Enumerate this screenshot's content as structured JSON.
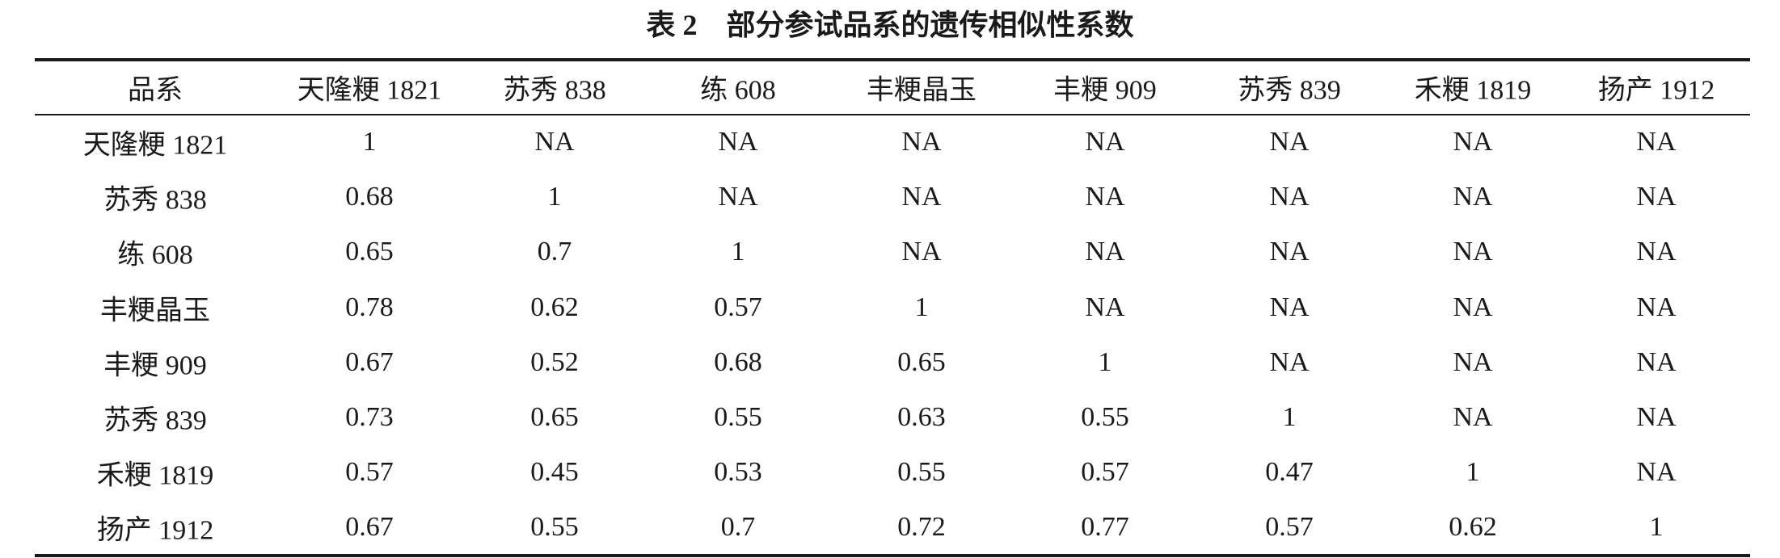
{
  "table": {
    "title": "表 2　部分参试品系的遗传相似性系数",
    "header": [
      "品系",
      "天隆粳 1821",
      "苏秀 838",
      "练 608",
      "丰粳晶玉",
      "丰粳 909",
      "苏秀 839",
      "禾粳 1819",
      "扬产 1912"
    ],
    "rows": [
      [
        "天隆粳 1821",
        "1",
        "NA",
        "NA",
        "NA",
        "NA",
        "NA",
        "NA",
        "NA"
      ],
      [
        "苏秀 838",
        "0.68",
        "1",
        "NA",
        "NA",
        "NA",
        "NA",
        "NA",
        "NA"
      ],
      [
        "练 608",
        "0.65",
        "0.7",
        "1",
        "NA",
        "NA",
        "NA",
        "NA",
        "NA"
      ],
      [
        "丰粳晶玉",
        "0.78",
        "0.62",
        "0.57",
        "1",
        "NA",
        "NA",
        "NA",
        "NA"
      ],
      [
        "丰粳 909",
        "0.67",
        "0.52",
        "0.68",
        "0.65",
        "1",
        "NA",
        "NA",
        "NA"
      ],
      [
        "苏秀 839",
        "0.73",
        "0.65",
        "0.55",
        "0.63",
        "0.55",
        "1",
        "NA",
        "NA"
      ],
      [
        "禾粳 1819",
        "0.57",
        "0.45",
        "0.53",
        "0.55",
        "0.57",
        "0.47",
        "1",
        "NA"
      ],
      [
        "扬产 1912",
        "0.67",
        "0.55",
        "0.7",
        "0.72",
        "0.77",
        "0.57",
        "0.62",
        "1"
      ]
    ]
  }
}
